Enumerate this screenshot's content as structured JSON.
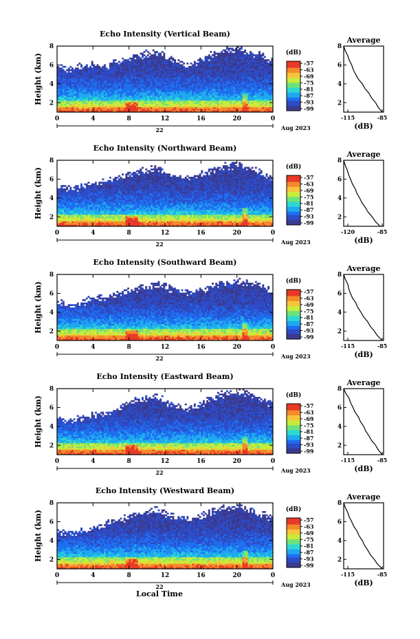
{
  "palette": {
    "colors": [
      "#3a3a90",
      "#2c4cc8",
      "#1e6ef0",
      "#1ea8f0",
      "#2ed8d0",
      "#6ee27a",
      "#c8ec3c",
      "#f6c43a",
      "#f48a2c",
      "#e83a26"
    ],
    "background_note_color": "#ffffff"
  },
  "xaxis": {
    "ticks": [
      "0",
      "4",
      "8",
      "12",
      "16",
      "20",
      "0"
    ],
    "day_label": "22",
    "month_label": "Aug 2023",
    "xlabel": "Local Time"
  },
  "yaxis": {
    "label": "Height (km)",
    "ticks": [
      "2",
      "4",
      "6",
      "8"
    ]
  },
  "colorbar": {
    "unit": "(dB)",
    "ticks": [
      "-57",
      "-63",
      "-69",
      "-75",
      "-81",
      "-87",
      "-93",
      "-99"
    ]
  },
  "avg_label": "(dB)",
  "chart_data": [
    {
      "type": "heatmap",
      "title": "Echo Intensity (Vertical Beam)",
      "avg_title": "Average",
      "avg_xticks": [
        "-115",
        "-85"
      ],
      "avg_xrange": [
        -115,
        -85
      ],
      "avg_profile": {
        "height_km": [
          8,
          7,
          6,
          5,
          4,
          3,
          2,
          1
        ],
        "db": [
          -115,
          -112,
          -109,
          -106,
          -101,
          -96,
          -91,
          -86
        ]
      },
      "ylim": [
        1,
        8
      ],
      "xlim": [
        0,
        24
      ],
      "white_top_km": [
        5.8,
        5.6,
        6.2,
        5.9,
        6.5,
        7.0,
        7.4,
        6.6,
        6.0,
        6.8,
        7.5,
        7.8,
        7.2,
        6.5
      ]
    },
    {
      "type": "heatmap",
      "title": "Echo Intensity (Northward Beam)",
      "avg_title": "Average",
      "avg_xticks": [
        "-120",
        "-85"
      ],
      "avg_xrange": [
        -120,
        -85
      ],
      "avg_profile": {
        "height_km": [
          8,
          7,
          6,
          5,
          4,
          3,
          2,
          1
        ],
        "db": [
          -120,
          -117,
          -114,
          -110,
          -106,
          -101,
          -95,
          -88
        ]
      },
      "ylim": [
        1,
        8
      ],
      "xlim": [
        0,
        24
      ],
      "white_top_km": [
        5.2,
        5.0,
        5.6,
        5.9,
        6.3,
        6.8,
        7.1,
        6.4,
        6.1,
        6.7,
        7.3,
        7.6,
        6.9,
        6.2
      ]
    },
    {
      "type": "heatmap",
      "title": "Echo Intensity (Southward Beam)",
      "avg_title": "Average",
      "avg_xticks": [
        "-115",
        "-85"
      ],
      "avg_xrange": [
        -115,
        -85
      ],
      "avg_profile": {
        "height_km": [
          8,
          7,
          6,
          5,
          4,
          3,
          2,
          1
        ],
        "db": [
          -115,
          -112,
          -110,
          -106,
          -102,
          -97,
          -92,
          -86
        ]
      },
      "ylim": [
        1,
        8
      ],
      "xlim": [
        0,
        24
      ],
      "white_top_km": [
        5.0,
        4.8,
        5.4,
        5.6,
        6.2,
        6.6,
        6.9,
        6.5,
        6.0,
        6.5,
        7.0,
        7.3,
        7.0,
        6.3
      ]
    },
    {
      "type": "heatmap",
      "title": "Echo Intensity (Eastward Beam)",
      "avg_title": "Average",
      "avg_xticks": [
        "-115",
        "-85"
      ],
      "avg_xrange": [
        -115,
        -85
      ],
      "avg_profile": {
        "height_km": [
          8,
          7,
          6,
          5,
          4,
          3,
          2,
          1
        ],
        "db": [
          -115,
          -111,
          -108,
          -104,
          -100,
          -96,
          -91,
          -86
        ]
      },
      "ylim": [
        1,
        8
      ],
      "xlim": [
        0,
        24
      ],
      "white_top_km": [
        4.8,
        4.6,
        5.2,
        5.5,
        6.3,
        6.9,
        7.2,
        6.3,
        5.9,
        6.6,
        7.4,
        7.7,
        7.1,
        6.4
      ]
    },
    {
      "type": "heatmap",
      "title": "Echo Intensity (Westward Beam)",
      "avg_title": "Average",
      "avg_xticks": [
        "-115",
        "-85"
      ],
      "avg_xrange": [
        -115,
        -85
      ],
      "avg_profile": {
        "height_km": [
          8,
          7,
          6,
          5,
          4,
          3,
          2,
          1
        ],
        "db": [
          -115,
          -112,
          -109,
          -105,
          -101,
          -97,
          -92,
          -86
        ]
      },
      "ylim": [
        1,
        8
      ],
      "xlim": [
        0,
        24
      ],
      "white_top_km": [
        4.9,
        4.7,
        5.3,
        5.8,
        6.4,
        6.9,
        7.3,
        6.5,
        6.2,
        6.8,
        7.5,
        7.7,
        7.0,
        6.4
      ]
    }
  ]
}
